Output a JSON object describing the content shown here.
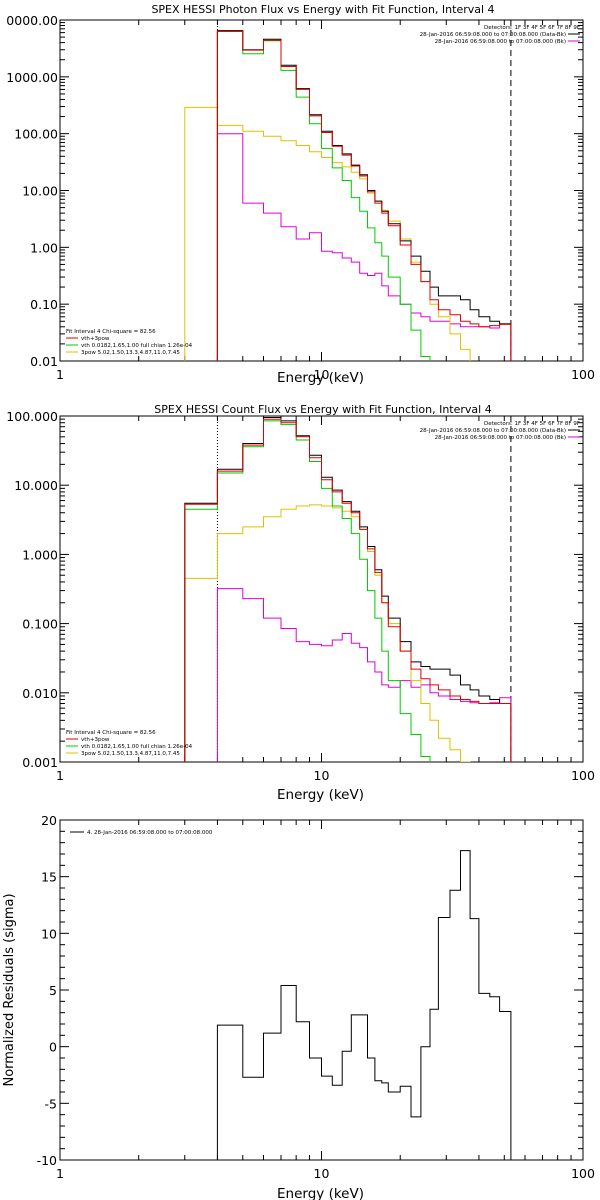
{
  "chart_data": [
    {
      "type": "line",
      "title": "SPEX HESSI Photon Flux vs Energy with Fit Function, Interval 4",
      "xlabel": "Energy (keV)",
      "ylabel": "",
      "xscale": "log",
      "yscale": "log",
      "xlim": [
        1,
        100
      ],
      "ylim": [
        0.01,
        10000
      ],
      "xticks": [
        "1",
        "10",
        "100"
      ],
      "yticks": [
        "0.01",
        "0.10",
        "1.00",
        "10.00",
        "100.00",
        "1000.00",
        "0000.00"
      ],
      "x_edges": [
        3,
        4,
        5,
        6,
        7,
        8,
        9,
        10,
        11,
        12,
        13,
        14,
        15,
        16,
        17,
        18,
        20,
        22,
        24,
        26,
        28,
        31,
        34,
        37,
        40,
        44,
        48,
        53
      ],
      "fit_range": [
        4,
        53
      ],
      "series": [
        {
          "name": "Data",
          "color": "#000000",
          "values": [
            null,
            6500,
            3000,
            4600,
            1600,
            620,
            215,
            110,
            62,
            44,
            28,
            19,
            10,
            6.5,
            4.3,
            2.6,
            1.3,
            0.7,
            0.38,
            0.2,
            0.14,
            0.14,
            0.12,
            0.08,
            0.06,
            0.05,
            0.045
          ]
        },
        {
          "name": "vth+3pow",
          "color": "#e00000",
          "values": [
            null,
            6300,
            2950,
            4400,
            1520,
            600,
            205,
            105,
            60,
            42,
            27,
            18,
            9.5,
            6,
            4,
            2.4,
            1.1,
            0.5,
            0.25,
            0.12,
            0.08,
            0.065,
            0.05,
            0.045,
            0.04,
            0.042,
            0.044
          ]
        },
        {
          "name": "vth 0.0182,1.65,1.00  full chian 1.26e-04",
          "color": "#00cc00",
          "values": [
            null,
            6300,
            2550,
            4300,
            1300,
            440,
            150,
            55,
            25,
            15,
            7.5,
            4.3,
            2.2,
            1.2,
            0.7,
            0.3,
            0.1,
            0.035,
            0.012,
            0.004,
            null,
            null,
            null,
            null,
            null,
            null,
            null
          ]
        },
        {
          "name": "3pow 5.02,1.50,13.3,4.87,11.0,7.45",
          "color": "#e0c000",
          "values": [
            290,
            140,
            110,
            90,
            75,
            62,
            48,
            38,
            31,
            26,
            21,
            16,
            9,
            6.5,
            4.5,
            2.9,
            1.4,
            0.55,
            0.25,
            0.1,
            0.06,
            0.03,
            0.016,
            0.008,
            null,
            null,
            null
          ]
        },
        {
          "name": "Background",
          "color": "#dd00dd",
          "values": [
            null,
            100,
            6,
            4,
            2.3,
            1.4,
            1.8,
            0.85,
            0.8,
            0.65,
            0.55,
            0.35,
            0.32,
            0.35,
            0.21,
            0.14,
            0.1,
            0.07,
            0.06,
            0.05,
            0.05,
            0.045,
            0.04,
            0.04,
            0.04,
            0.038,
            0.045
          ]
        }
      ],
      "annotations": [
        "Detectors: 1F 3F 4F 5F 6F 7F 8F 9F",
        "28-Jan-2016 06:59:08.000 to 07:00:08.000 (Data-Bk)",
        "28-Jan-2016 06:59:08.000 to 07:00:08.000 (Bk)",
        "Fit Interval 4   Chi-square = 82.56"
      ],
      "legend_position": "bottom-left"
    },
    {
      "type": "line",
      "title": "SPEX HESSI Count Flux vs Energy with Fit Function, Interval 4",
      "xlabel": "Energy (keV)",
      "ylabel": "",
      "xscale": "log",
      "yscale": "log",
      "xlim": [
        1,
        100
      ],
      "ylim": [
        0.001,
        100
      ],
      "xticks": [
        "1",
        "10",
        "100"
      ],
      "yticks": [
        "0.001",
        "0.010",
        "0.100",
        "1.000",
        "10.000",
        "100.000"
      ],
      "x_edges": [
        3,
        4,
        5,
        6,
        7,
        8,
        9,
        10,
        11,
        12,
        13,
        14,
        15,
        16,
        17,
        18,
        20,
        22,
        24,
        26,
        28,
        31,
        34,
        37,
        40,
        44,
        48,
        53
      ],
      "fit_range": [
        4,
        53
      ],
      "series": [
        {
          "name": "Data",
          "color": "#000000",
          "values": [
            5.5,
            17,
            40,
            95,
            85,
            52,
            27,
            13,
            8.5,
            5.8,
            4.2,
            2.5,
            1.3,
            0.6,
            0.25,
            0.12,
            0.055,
            0.028,
            0.024,
            0.022,
            0.022,
            0.018,
            0.013,
            0.011,
            0.009,
            0.008,
            0.007
          ]
        },
        {
          "name": "vth+3pow",
          "color": "#e00000",
          "values": [
            5.3,
            16,
            38,
            90,
            80,
            50,
            25,
            12,
            8,
            5.5,
            4,
            2.3,
            1.2,
            0.55,
            0.2,
            0.09,
            0.04,
            0.022,
            0.016,
            0.013,
            0.011,
            0.009,
            0.008,
            0.0075,
            0.007,
            0.007,
            0.007
          ]
        },
        {
          "name": "vth 0.0182,1.65,1.00  full chian 1.26e-04",
          "color": "#00cc00",
          "values": [
            4.5,
            15,
            36,
            85,
            75,
            45,
            22,
            9,
            5,
            3.3,
            2,
            0.85,
            0.3,
            0.12,
            0.04,
            0.015,
            0.005,
            0.0025,
            0.0012,
            null,
            null,
            null,
            null,
            null,
            null,
            null,
            null
          ]
        },
        {
          "name": "3pow 5.02,1.50,13.3,4.87,11.0,7.45",
          "color": "#e0c000",
          "values": [
            0.45,
            2,
            2.5,
            3.5,
            4.5,
            5,
            5.2,
            5,
            4.7,
            4.2,
            3.5,
            2.3,
            1.1,
            0.5,
            0.2,
            0.1,
            0.04,
            0.015,
            0.007,
            0.004,
            0.0022,
            0.0015,
            0.001,
            null,
            null,
            null,
            null
          ]
        },
        {
          "name": "Background",
          "color": "#dd00dd",
          "values": [
            null,
            0.32,
            0.23,
            0.12,
            0.085,
            0.055,
            0.05,
            0.048,
            0.058,
            0.072,
            0.052,
            0.045,
            0.028,
            0.02,
            0.013,
            0.012,
            0.015,
            0.012,
            0.013,
            0.01,
            0.009,
            0.008,
            0.0075,
            0.0072,
            0.007,
            0.0072,
            0.0085
          ]
        }
      ],
      "annotations": [
        "Detectors: 1F 3F 4F 5F 6F 7F 8F 9F",
        "28-Jan-2016 06:59:08.000 to 07:00:08.000 (Data-Bk)",
        "28-Jan-2016 06:59:08.000 to 07:00:08.000 (Bk)",
        "Fit Interval 4   Chi-square = 82.56"
      ],
      "legend_position": "bottom-left"
    },
    {
      "type": "line",
      "title": "",
      "xlabel": "Energy (keV)",
      "ylabel": "Normalized Residuals (sigma)",
      "xscale": "log",
      "yscale": "linear",
      "xlim": [
        1,
        100
      ],
      "ylim": [
        -10,
        20
      ],
      "xticks": [
        "1",
        "10",
        "100"
      ],
      "yticks": [
        "-10",
        "-5",
        "0",
        "5",
        "10",
        "15",
        "20"
      ],
      "x_edges": [
        4,
        5,
        6,
        7,
        8,
        9,
        10,
        11,
        12,
        13,
        14,
        15,
        16,
        17,
        18,
        20,
        22,
        24,
        26,
        28,
        31,
        34,
        37,
        40,
        44,
        48,
        53
      ],
      "series": [
        {
          "name": "4. 28-Jan-2016 06:59:08.000 to 07:00:08.000",
          "color": "#000000",
          "values": [
            1.9,
            -2.7,
            1.2,
            5.4,
            2.2,
            -1.0,
            -2.6,
            -3.4,
            -0.4,
            2.8,
            2.8,
            -1.0,
            -3.0,
            -3.2,
            -4.0,
            -3.5,
            -6.2,
            0.0,
            3.3,
            11.4,
            13.8,
            17.3,
            11.3,
            4.7,
            4.4,
            3.1
          ]
        }
      ],
      "legend_position": "top-left"
    }
  ]
}
